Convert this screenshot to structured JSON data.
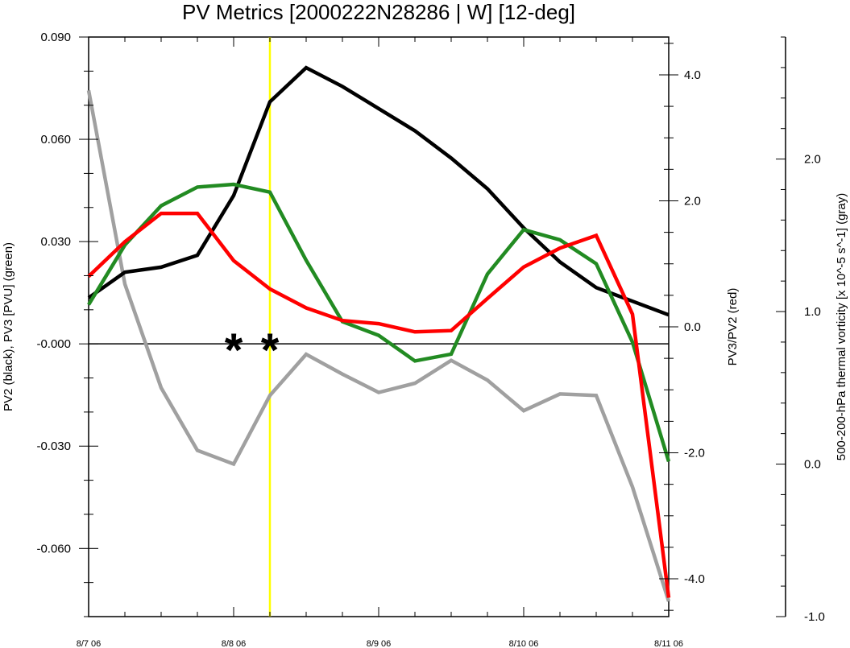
{
  "chart_data": {
    "type": "line",
    "title": "PV Metrics [2000222N28286 | W] [12-deg]",
    "x_tick_labels": [
      "8/7 06",
      "8/8 06",
      "8/9 06",
      "8/10 06",
      "8/11 06"
    ],
    "x_range_days": [
      0,
      4
    ],
    "x_days": [
      0,
      0.25,
      0.5,
      0.75,
      1,
      1.25,
      1.5,
      1.75,
      2,
      2.25,
      2.5,
      2.75,
      3,
      3.25,
      3.5,
      3.75,
      4
    ],
    "left_axis": {
      "label": "PV2 (black), PV3 [PVU] (green)",
      "range": [
        -0.08,
        0.09
      ],
      "ticks": [
        "0.090",
        "0.060",
        "0.030",
        "-0.000",
        "-0.030",
        "-0.060"
      ],
      "tick_values": [
        0.09,
        0.06,
        0.03,
        0,
        -0.03,
        -0.06
      ]
    },
    "right_axis": {
      "label": "PV3/PV2 (red)",
      "range": [
        -4.6,
        4.6
      ],
      "ticks": [
        "4.0",
        "2.0",
        "0.0",
        "-2.0",
        "-4.0"
      ],
      "tick_values": [
        4,
        2,
        0,
        -2,
        -4
      ]
    },
    "far_right_axis": {
      "label": "500-200-hPa thermal vorticity [x 10^-5 s^-1] (gray)",
      "range": [
        -1.0,
        2.8
      ],
      "ticks": [
        "2.0",
        "1.0",
        "0.0",
        "-1.0"
      ],
      "tick_values": [
        2,
        1,
        0,
        -1
      ]
    },
    "series": [
      {
        "color": "#000000",
        "axis": "left_axis",
        "values": [
          0.0135,
          0.021,
          0.0225,
          0.026,
          0.0435,
          0.071,
          0.081,
          0.0755,
          0.069,
          0.0625,
          0.0545,
          0.0455,
          0.034,
          0.024,
          0.0165,
          0.0125,
          0.0085
        ]
      },
      {
        "color": "#228B22",
        "axis": "left_axis",
        "values": [
          0.0115,
          0.029,
          0.0405,
          0.046,
          0.0468,
          0.0445,
          0.0245,
          0.0065,
          0.0025,
          -0.005,
          -0.003,
          0.0205,
          0.0335,
          0.0305,
          0.0235,
          0.0005,
          -0.0345
        ]
      },
      {
        "color": "#FF0000",
        "axis": "right_axis",
        "values": [
          0.8,
          1.35,
          1.8,
          1.8,
          1.05,
          0.6,
          0.3,
          0.1,
          0.05,
          -0.08,
          -0.06,
          0.45,
          0.95,
          1.25,
          1.45,
          0.2,
          -4.3
        ]
      },
      {
        "color": "#A0A0A0",
        "axis": "far_right_axis",
        "values": [
          2.45,
          1.18,
          0.5,
          0.09,
          0.0,
          0.45,
          0.72,
          0.59,
          0.47,
          0.53,
          0.68,
          0.55,
          0.35,
          0.46,
          0.45,
          -0.15,
          -0.9
        ]
      }
    ],
    "vertical_line": {
      "x_day": 1.25,
      "color": "#FFFF00"
    },
    "zero_line_value": 0,
    "star_markers": {
      "symbol": "*",
      "x_days": [
        1.0,
        1.25
      ],
      "value": 0
    },
    "grid": false
  }
}
